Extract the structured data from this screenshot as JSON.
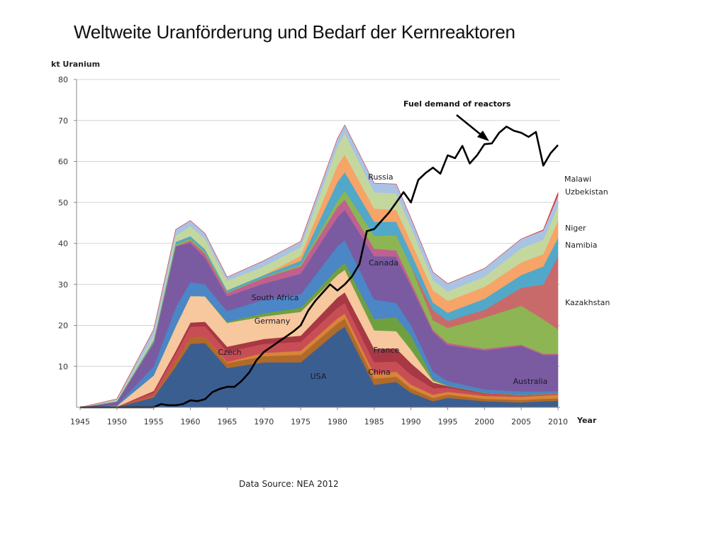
{
  "title": "Weltweite Uranförderung und Bedarf der Kernreaktoren",
  "source": "Data Source: NEA 2012",
  "chart_data": {
    "type": "area",
    "stacked": true,
    "ylabel": "kt Uranium",
    "xlabel": "Year",
    "xlim": [
      1945,
      2010
    ],
    "ylim": [
      0,
      80
    ],
    "x_ticks": [
      1945,
      1950,
      1955,
      1960,
      1965,
      1970,
      1975,
      1980,
      1985,
      1990,
      1995,
      2000,
      2005,
      2010
    ],
    "y_ticks": [
      10,
      20,
      30,
      40,
      50,
      60,
      70,
      80
    ],
    "grid": true,
    "x": [
      1945,
      1950,
      1955,
      1958,
      1960,
      1962,
      1965,
      1970,
      1975,
      1980,
      1981,
      1985,
      1988,
      1990,
      1993,
      1995,
      2000,
      2005,
      2008,
      2010
    ],
    "series": [
      {
        "name": "USA",
        "color": "#3b5e91",
        "values": [
          0,
          0.1,
          2.4,
          10,
          15.5,
          15.7,
          9.6,
          11,
          11,
          18.5,
          19.7,
          5.5,
          6.2,
          3.6,
          1.5,
          2.3,
          1.5,
          1.2,
          1.5,
          1.6
        ]
      },
      {
        "name": "",
        "color": "#b06a2a",
        "values": [
          0,
          0,
          0.4,
          1.2,
          1.6,
          1.5,
          1.2,
          1.5,
          1.8,
          2,
          2,
          1.5,
          1.3,
          1,
          0.8,
          0.8,
          0.6,
          0.6,
          0.6,
          0.6
        ]
      },
      {
        "name": "China",
        "color": "#d8843a",
        "values": [
          0,
          0,
          0,
          0,
          0,
          0,
          0.3,
          0.8,
          1,
          1.2,
          1.2,
          1.2,
          1.2,
          1,
          0.8,
          0.7,
          0.7,
          0.8,
          0.8,
          0.9
        ]
      },
      {
        "name": "Czech",
        "color": "#c84e55",
        "values": [
          0,
          0.05,
          0.8,
          1.9,
          2.6,
          2.6,
          2.5,
          2.2,
          2.2,
          2.6,
          2.6,
          2.8,
          2.5,
          2.4,
          1.6,
          1,
          0.6,
          0.4,
          0.3,
          0.3
        ]
      },
      {
        "name": "France",
        "color": "#a73844",
        "values": [
          0,
          0,
          0.4,
          0.7,
          1,
          1.1,
          1.2,
          1.2,
          1.5,
          2.5,
          2.6,
          3.3,
          3.2,
          2.8,
          1.4,
          0.4,
          0.1,
          0,
          0,
          0
        ]
      },
      {
        "name": "Germany",
        "color": "#f7c79d",
        "values": [
          0,
          0.2,
          3.8,
          6,
          6.5,
          6.2,
          5.8,
          5.5,
          5.8,
          5.5,
          5.5,
          4.5,
          4.2,
          3.3,
          0.4,
          0,
          0,
          0,
          0,
          0
        ]
      },
      {
        "name": "",
        "color": "#6fa040",
        "values": [
          0,
          0,
          0,
          0,
          0,
          0,
          0.3,
          0.8,
          1,
          1.5,
          1.7,
          2.8,
          3.3,
          3.5,
          0.5,
          0.1,
          0.1,
          0.1,
          0.1,
          0.1
        ]
      },
      {
        "name": "South Africa",
        "color": "#4b86c6",
        "values": [
          0,
          0.2,
          2.2,
          4.6,
          3.4,
          2.9,
          2.6,
          3.3,
          3.3,
          5.5,
          5.5,
          4.7,
          3.6,
          2.5,
          1.8,
          1.1,
          0.8,
          0.8,
          0.6,
          0.5
        ]
      },
      {
        "name": "Canada",
        "color": "#7a5ba1",
        "values": [
          0,
          0.8,
          5.8,
          14.9,
          9.5,
          6.5,
          3.6,
          3.9,
          5,
          7.1,
          7.4,
          10.6,
          11.3,
          9.6,
          9.6,
          8.8,
          9.5,
          11.1,
          8.9,
          8.8
        ]
      },
      {
        "name": "",
        "color": "#c06090",
        "values": [
          0,
          0,
          0,
          0,
          0.6,
          1,
          0.8,
          1.4,
          1.8,
          2.5,
          2.5,
          1.8,
          1.5,
          1,
          0.5,
          0.5,
          0.4,
          0.3,
          0.3,
          0.3
        ]
      },
      {
        "name": "Australia",
        "color": "#8db553",
        "values": [
          0,
          0.1,
          0.3,
          0.5,
          0.5,
          0.5,
          0.2,
          0.2,
          0.4,
          1.5,
          2.2,
          3.2,
          3.7,
          3.8,
          2.4,
          3.7,
          7.6,
          9.5,
          8.4,
          6
        ]
      },
      {
        "name": "Kazakhstan",
        "color": "#c96a6a",
        "values": [
          0,
          0,
          0,
          0,
          0,
          0,
          0,
          0,
          0,
          0,
          0,
          0,
          0,
          0,
          2.5,
          1.7,
          1.9,
          4.4,
          8.5,
          17.8
        ]
      },
      {
        "name": "Namibia",
        "color": "#52a8c8",
        "values": [
          0,
          0.1,
          0.4,
          0.6,
          0.6,
          0.6,
          0.5,
          0.5,
          1,
          4.6,
          4.5,
          3.4,
          3.3,
          3.2,
          1.8,
          2,
          2.7,
          3.1,
          4.4,
          4.5
        ]
      },
      {
        "name": "Niger",
        "color": "#f7a468",
        "values": [
          0,
          0,
          0,
          0,
          0,
          0,
          0,
          0,
          1.2,
          4.1,
          4.3,
          3.2,
          2.9,
          2.8,
          3,
          2.9,
          2.9,
          3.1,
          3,
          4.2
        ]
      },
      {
        "name": "Russia",
        "color": "#c4d89e",
        "values": [
          0,
          0.2,
          0.8,
          1.5,
          2.4,
          2.5,
          2.3,
          2.1,
          2.1,
          4.5,
          5.2,
          4,
          4,
          3.5,
          2.5,
          2.3,
          2.5,
          3.4,
          3.5,
          3.6
        ]
      },
      {
        "name": "Uzbekistan",
        "color": "#a9c3e4",
        "values": [
          0,
          0.3,
          1.7,
          1.5,
          1.4,
          1.3,
          0.9,
          1.4,
          1.4,
          2,
          2,
          2.2,
          2.3,
          2.2,
          1.9,
          1.9,
          2,
          2.3,
          2.3,
          2.5
        ]
      },
      {
        "name": "Malawi",
        "color": "#e03030",
        "values": [
          0,
          0,
          0,
          0,
          0,
          0,
          0,
          0,
          0,
          0,
          0,
          0,
          0,
          0,
          0,
          0,
          0,
          0,
          0.1,
          0.7
        ]
      }
    ],
    "demand_line": {
      "name": "Fuel demand of reactors",
      "color": "#000000",
      "x": [
        1945,
        1950,
        1955,
        1956,
        1957,
        1958,
        1959,
        1960,
        1961,
        1962,
        1963,
        1964,
        1965,
        1966,
        1967,
        1968,
        1969,
        1970,
        1972,
        1974,
        1975,
        1976,
        1977,
        1978,
        1979,
        1980,
        1981,
        1982,
        1983,
        1984,
        1985,
        1986,
        1987,
        1988,
        1989,
        1990,
        1991,
        1992,
        1993,
        1994,
        1995,
        1996,
        1997,
        1998,
        1999,
        2000,
        2001,
        2002,
        2003,
        2004,
        2005,
        2006,
        2007,
        2008,
        2009,
        2010
      ],
      "values": [
        0,
        0,
        0,
        0.8,
        0.5,
        0.5,
        0.8,
        1.7,
        1.5,
        2,
        3.7,
        4.5,
        5,
        5,
        6.5,
        8.5,
        11.5,
        13.5,
        16,
        18.5,
        20,
        23.5,
        26,
        28,
        30,
        28.5,
        30,
        32,
        35,
        43,
        43.5,
        45.5,
        47.5,
        50,
        52.5,
        50,
        55.5,
        57.2,
        58.5,
        57,
        61.5,
        60.8,
        63.8,
        59.5,
        61.5,
        64.2,
        64.4,
        67,
        68.5,
        67.5,
        67,
        66,
        67.2,
        59,
        62,
        64
      ]
    },
    "labels": {
      "USA": "USA",
      "Czech": "Czech",
      "Germany": "Germany",
      "South Africa": "South Africa",
      "China": "China",
      "France": "France",
      "Canada": "Canada",
      "Russia": "Russia",
      "Australia": "Australia",
      "Malawi": "Malawi",
      "Uzbekistan": "Uzbekistan",
      "Niger": "Niger",
      "Namibia": "Namibia",
      "Kazakhstan": "Kazakhstan"
    }
  }
}
